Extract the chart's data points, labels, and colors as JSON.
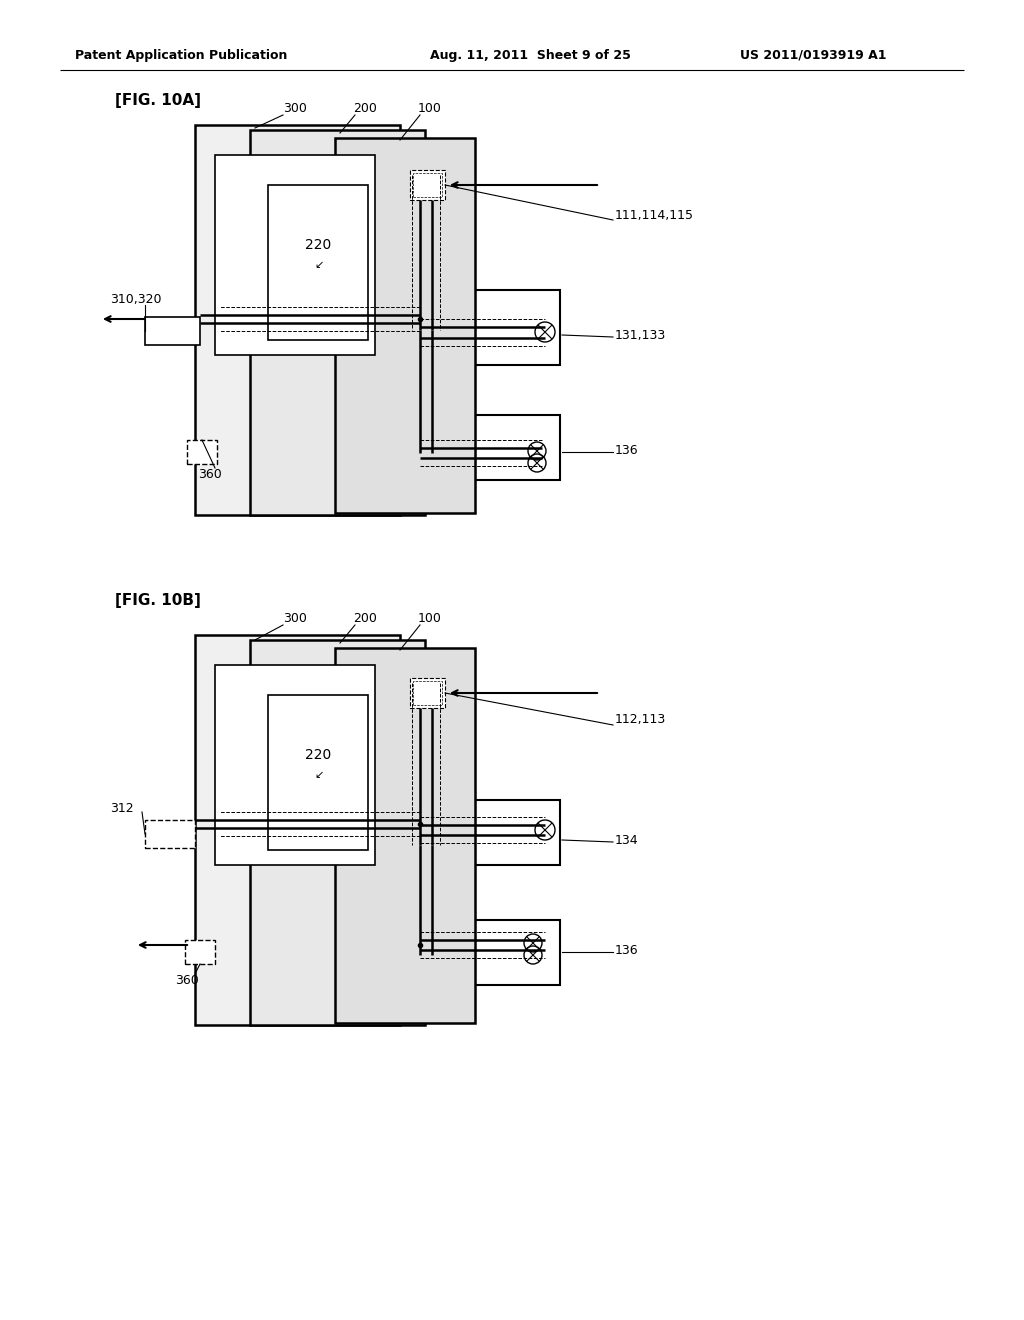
{
  "bg_color": "#ffffff",
  "header_text": "Patent Application Publication",
  "header_date": "Aug. 11, 2011  Sheet 9 of 25",
  "header_patent": "US 2011/0193919 A1",
  "fig10a_label": "[FIG. 10A]",
  "fig10b_label": "[FIG. 10B]"
}
